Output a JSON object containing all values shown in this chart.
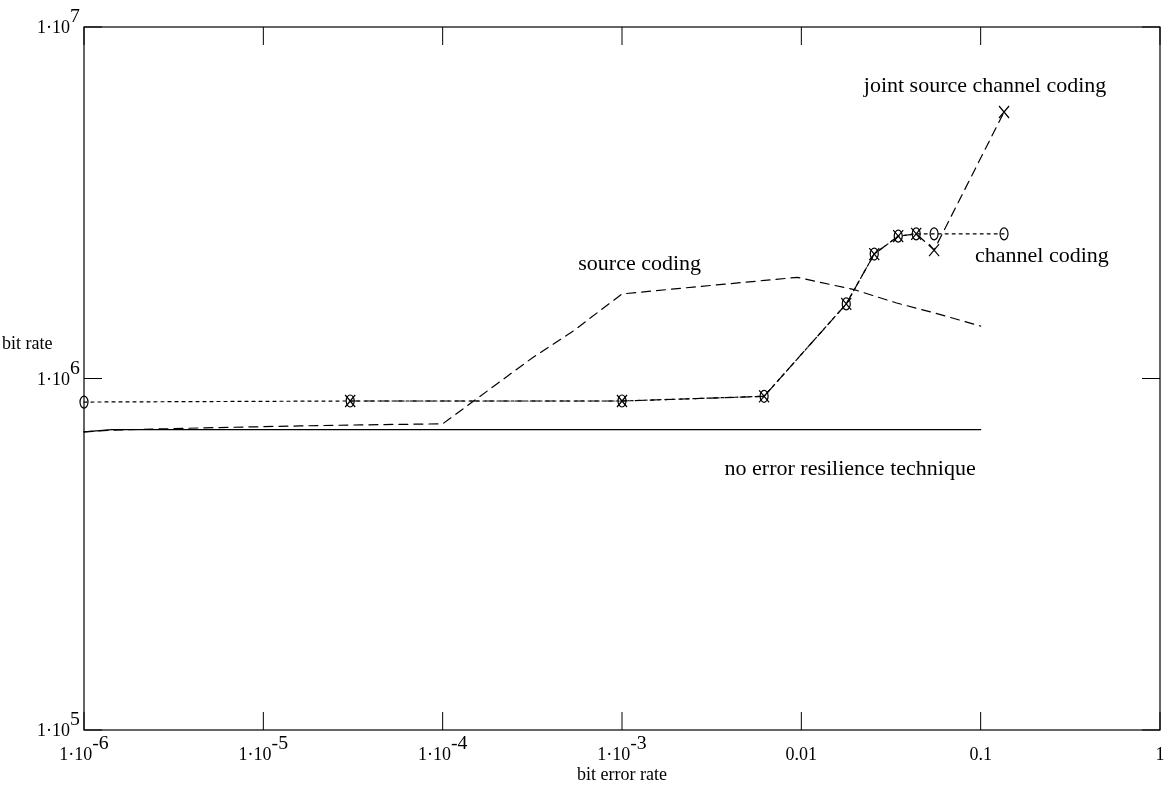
{
  "chart_data": {
    "type": "line",
    "xlabel": "bit error rate",
    "ylabel": "bit rate",
    "log": "xy",
    "grid": false,
    "xlim": [
      1e-06,
      1
    ],
    "ylim": [
      100000.0,
      10000000.0
    ],
    "xticks": [
      {
        "value": 1e-06,
        "label": "1·10$^{-6}$"
      },
      {
        "value": 1e-05,
        "label": "1·10$^{-5}$"
      },
      {
        "value": 0.0001,
        "label": "1·10$^{-4}$"
      },
      {
        "value": 0.001,
        "label": "1·10$^{-3}$"
      },
      0.01,
      0.1,
      1
    ],
    "yticks": [
      {
        "value": 100000.0,
        "label": "1·10$^{5}$"
      },
      {
        "value": 1000000.0,
        "label": "1·10$^{6}$"
      },
      {
        "value": 10000000.0,
        "label": "1·10$^{7}$"
      }
    ],
    "series": [
      {
        "name": "no error resilience technique",
        "color": "#000000",
        "line_style": "solid",
        "marker": "none",
        "x": [
          1e-06,
          1.43e-06,
          0.1
        ],
        "values": [
          705000,
          715000,
          715000
        ]
      },
      {
        "name": "source coding",
        "color": "#000000",
        "line_style": "dashed",
        "marker": "none",
        "x": [
          1e-06,
          1.43e-06,
          4.3e-06,
          1.6e-05,
          3.5e-05,
          0.0001,
          0.00032,
          0.00053,
          0.001,
          0.0025,
          0.0095,
          0.0197,
          0.034,
          0.057,
          0.1
        ],
        "values": [
          705000,
          713000,
          723000,
          733000,
          738000,
          743000,
          1150000,
          1360000,
          1740000,
          1820000,
          1940000,
          1790000,
          1640000,
          1530000,
          1410000
        ]
      },
      {
        "name": "channel coding",
        "color": "#000000",
        "line_style": "dotted",
        "marker": "circle",
        "x": [
          1e-06,
          3.05e-05,
          0.001,
          0.0062,
          0.0178,
          0.0255,
          0.0347,
          0.0437,
          0.055,
          0.135
        ],
        "values": [
          857000,
          863000,
          863000,
          890000,
          1630000,
          2260000,
          2540000,
          2580000,
          2580000,
          2580000
        ]
      },
      {
        "name": "joint source channel coding",
        "color": "#000000",
        "line_style": "dashed",
        "marker": "cross",
        "x": [
          3.05e-05,
          0.001,
          0.0062,
          0.0178,
          0.0255,
          0.0347,
          0.0437,
          0.055,
          0.135
        ],
        "values": [
          863000,
          863000,
          890000,
          1630000,
          2260000,
          2540000,
          2580000,
          2320000,
          5730000
        ]
      }
    ]
  }
}
